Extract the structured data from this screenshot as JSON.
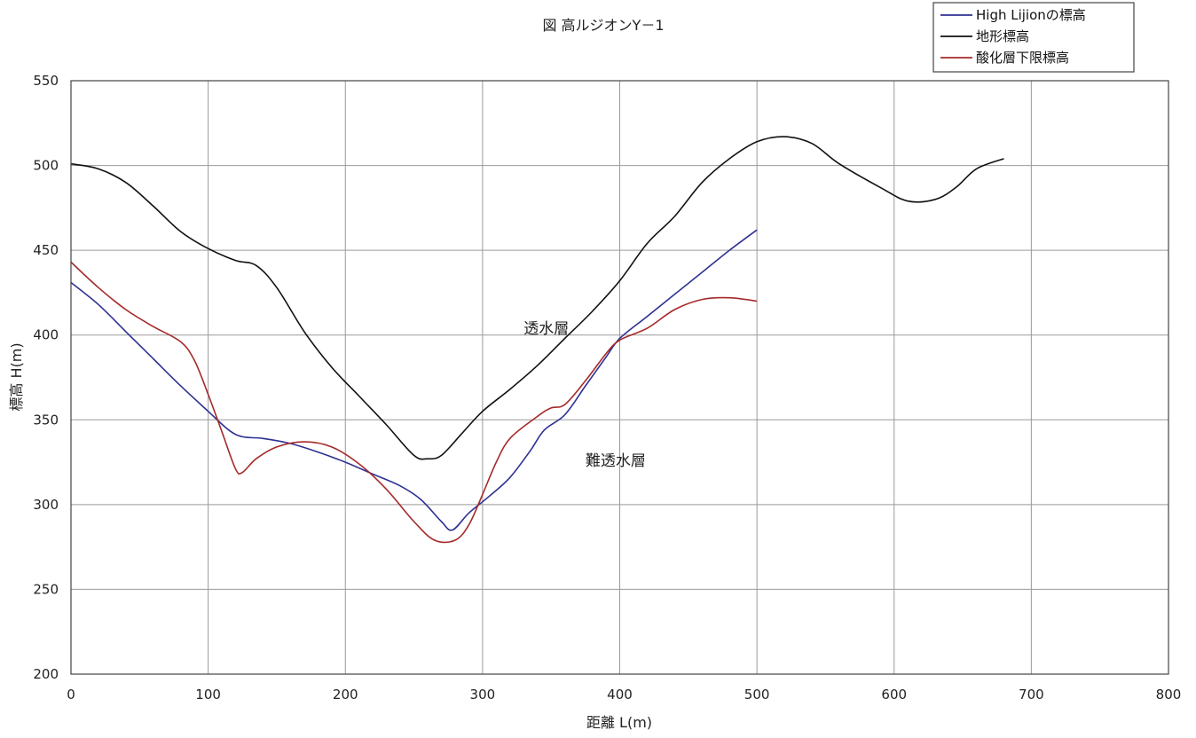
{
  "chart_data": {
    "type": "line",
    "title": "図 高ルジオンY－1",
    "xlabel": "距離 L(m)",
    "ylabel": "標高 H(m)",
    "xlim": [
      0,
      800
    ],
    "ylim": [
      200,
      550
    ],
    "xticks": [
      "0",
      "100",
      "200",
      "300",
      "400",
      "500",
      "600",
      "700",
      "800"
    ],
    "yticks": [
      "200",
      "250",
      "300",
      "350",
      "400",
      "450",
      "500",
      "550"
    ],
    "grid": true,
    "legend_position": "top-right",
    "annotations": [
      {
        "text": "透水層",
        "x": 330,
        "y": 401
      },
      {
        "text": "難透水層",
        "x": 375,
        "y": 323
      }
    ],
    "series": [
      {
        "name": "High Lijionの標高",
        "color": "#2e3192",
        "x": [
          0,
          20,
          40,
          60,
          80,
          100,
          115,
          125,
          140,
          160,
          180,
          200,
          220,
          240,
          255,
          270,
          278,
          290,
          305,
          320,
          335,
          345,
          360,
          375,
          390,
          400,
          420,
          440,
          460,
          480,
          500
        ],
        "y": [
          431,
          418,
          402,
          386,
          370,
          355,
          344,
          340,
          339,
          336,
          331,
          325,
          318,
          311,
          303,
          290,
          285,
          295,
          305,
          316,
          332,
          344,
          353,
          370,
          387,
          398,
          411,
          424,
          437,
          450,
          462
        ]
      },
      {
        "name": "地形標高",
        "color": "#111111",
        "x": [
          0,
          20,
          40,
          60,
          80,
          100,
          120,
          135,
          150,
          170,
          190,
          210,
          230,
          250,
          260,
          270,
          285,
          300,
          320,
          340,
          360,
          380,
          400,
          420,
          440,
          460,
          480,
          500,
          520,
          540,
          560,
          590,
          610,
          630,
          645,
          660,
          680
        ],
        "y": [
          501,
          498,
          490,
          476,
          461,
          451,
          444,
          441,
          428,
          402,
          381,
          364,
          347,
          329,
          327,
          329,
          342,
          355,
          368,
          382,
          398,
          414,
          432,
          454,
          470,
          490,
          504,
          514,
          517,
          513,
          501,
          487,
          479,
          480,
          487,
          498,
          504
        ]
      },
      {
        "name": "酸化層下限標高",
        "color": "#a52a2a",
        "x": [
          0,
          20,
          40,
          60,
          80,
          90,
          100,
          110,
          120,
          125,
          135,
          150,
          170,
          190,
          210,
          230,
          250,
          265,
          280,
          290,
          300,
          310,
          320,
          340,
          350,
          360,
          375,
          390,
          400,
          420,
          440,
          460,
          480,
          500
        ],
        "y": [
          443,
          428,
          415,
          405,
          396,
          385,
          365,
          343,
          321,
          319,
          327,
          334,
          337,
          334,
          324,
          309,
          290,
          279,
          279,
          288,
          306,
          325,
          339,
          352,
          357,
          359,
          373,
          389,
          397,
          404,
          415,
          421,
          422,
          420
        ]
      }
    ]
  }
}
